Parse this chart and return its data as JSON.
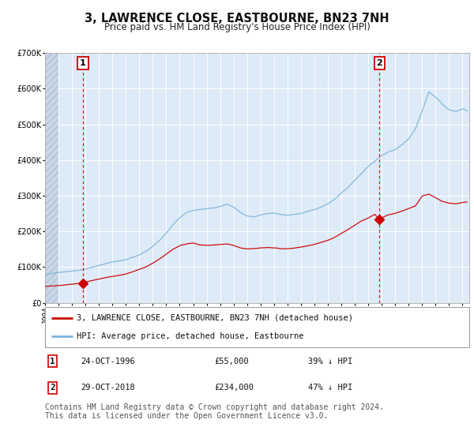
{
  "title": "3, LAWRENCE CLOSE, EASTBOURNE, BN23 7NH",
  "subtitle": "Price paid vs. HM Land Registry's House Price Index (HPI)",
  "legend_line1": "3, LAWRENCE CLOSE, EASTBOURNE, BN23 7NH (detached house)",
  "legend_line2": "HPI: Average price, detached house, Eastbourne",
  "sale1_date": "24-OCT-1996",
  "sale1_price": 55000,
  "sale1_hpi_pct": "39% ↓ HPI",
  "sale1_year": 1996.81,
  "sale2_date": "29-OCT-2018",
  "sale2_price": 234000,
  "sale2_hpi_pct": "47% ↓ HPI",
  "sale2_year": 2018.83,
  "hpi_color": "#7ab3d8",
  "price_color": "#cc0000",
  "vline_color": "#cc0000",
  "background_color": "#ddeaf7",
  "ylim": [
    0,
    700000
  ],
  "xlim_start": 1994.0,
  "xlim_end": 2025.5,
  "copyright_text": "Contains HM Land Registry data © Crown copyright and database right 2024.\nThis data is licensed under the Open Government Licence v3.0.",
  "footnote_fontsize": 7.0,
  "title_fontsize": 10.5,
  "subtitle_fontsize": 8.5,
  "tick_fontsize": 6.5,
  "legend_fontsize": 7.5,
  "hpi_waypoints_x": [
    1994.0,
    1994.5,
    1995.0,
    1995.5,
    1996.0,
    1996.5,
    1997.0,
    1997.5,
    1998.0,
    1998.5,
    1999.0,
    1999.5,
    2000.0,
    2000.5,
    2001.0,
    2001.5,
    2002.0,
    2002.5,
    2003.0,
    2003.5,
    2004.0,
    2004.5,
    2005.0,
    2005.5,
    2006.0,
    2006.5,
    2007.0,
    2007.5,
    2008.0,
    2008.5,
    2009.0,
    2009.5,
    2010.0,
    2010.5,
    2011.0,
    2011.5,
    2012.0,
    2012.5,
    2013.0,
    2013.5,
    2014.0,
    2014.5,
    2015.0,
    2015.5,
    2016.0,
    2016.5,
    2017.0,
    2017.5,
    2018.0,
    2018.5,
    2019.0,
    2019.5,
    2020.0,
    2020.5,
    2021.0,
    2021.5,
    2022.0,
    2022.5,
    2023.0,
    2023.5,
    2024.0,
    2024.5,
    2025.0,
    2025.4
  ],
  "hpi_waypoints_y": [
    80000,
    82000,
    85000,
    87000,
    89000,
    91000,
    95000,
    100000,
    105000,
    110000,
    115000,
    118000,
    122000,
    128000,
    135000,
    145000,
    158000,
    175000,
    195000,
    218000,
    238000,
    252000,
    258000,
    262000,
    265000,
    268000,
    272000,
    278000,
    270000,
    255000,
    245000,
    242000,
    248000,
    252000,
    254000,
    250000,
    248000,
    250000,
    253000,
    258000,
    263000,
    270000,
    280000,
    292000,
    310000,
    325000,
    345000,
    365000,
    385000,
    400000,
    415000,
    425000,
    432000,
    445000,
    462000,
    490000,
    540000,
    595000,
    580000,
    560000,
    545000,
    540000,
    548000,
    542000
  ],
  "prop_waypoints_x": [
    1994.0,
    1994.5,
    1995.0,
    1995.5,
    1996.0,
    1996.5,
    1996.81,
    1997.0,
    1997.5,
    1998.0,
    1998.5,
    1999.0,
    1999.5,
    2000.0,
    2000.5,
    2001.0,
    2001.5,
    2002.0,
    2002.5,
    2003.0,
    2003.5,
    2004.0,
    2004.5,
    2005.0,
    2005.5,
    2006.0,
    2006.5,
    2007.0,
    2007.5,
    2008.0,
    2008.5,
    2009.0,
    2009.5,
    2010.0,
    2010.5,
    2011.0,
    2011.5,
    2012.0,
    2012.5,
    2013.0,
    2013.5,
    2014.0,
    2014.5,
    2015.0,
    2015.5,
    2016.0,
    2016.5,
    2017.0,
    2017.5,
    2018.0,
    2018.5,
    2018.83,
    2019.0,
    2019.5,
    2020.0,
    2020.5,
    2021.0,
    2021.5,
    2022.0,
    2022.5,
    2023.0,
    2023.5,
    2024.0,
    2024.5,
    2025.0,
    2025.4
  ],
  "prop_waypoints_y": [
    46000,
    47000,
    48000,
    50000,
    52000,
    54000,
    55000,
    58000,
    62000,
    66000,
    70000,
    73000,
    76000,
    80000,
    86000,
    93000,
    100000,
    110000,
    122000,
    136000,
    150000,
    160000,
    165000,
    168000,
    163000,
    162000,
    163000,
    164000,
    166000,
    162000,
    155000,
    152000,
    153000,
    155000,
    156000,
    155000,
    153000,
    153000,
    155000,
    158000,
    162000,
    166000,
    172000,
    178000,
    186000,
    197000,
    208000,
    220000,
    232000,
    240000,
    250000,
    234000,
    240000,
    248000,
    252000,
    258000,
    265000,
    272000,
    300000,
    305000,
    295000,
    285000,
    280000,
    278000,
    282000,
    284000
  ]
}
